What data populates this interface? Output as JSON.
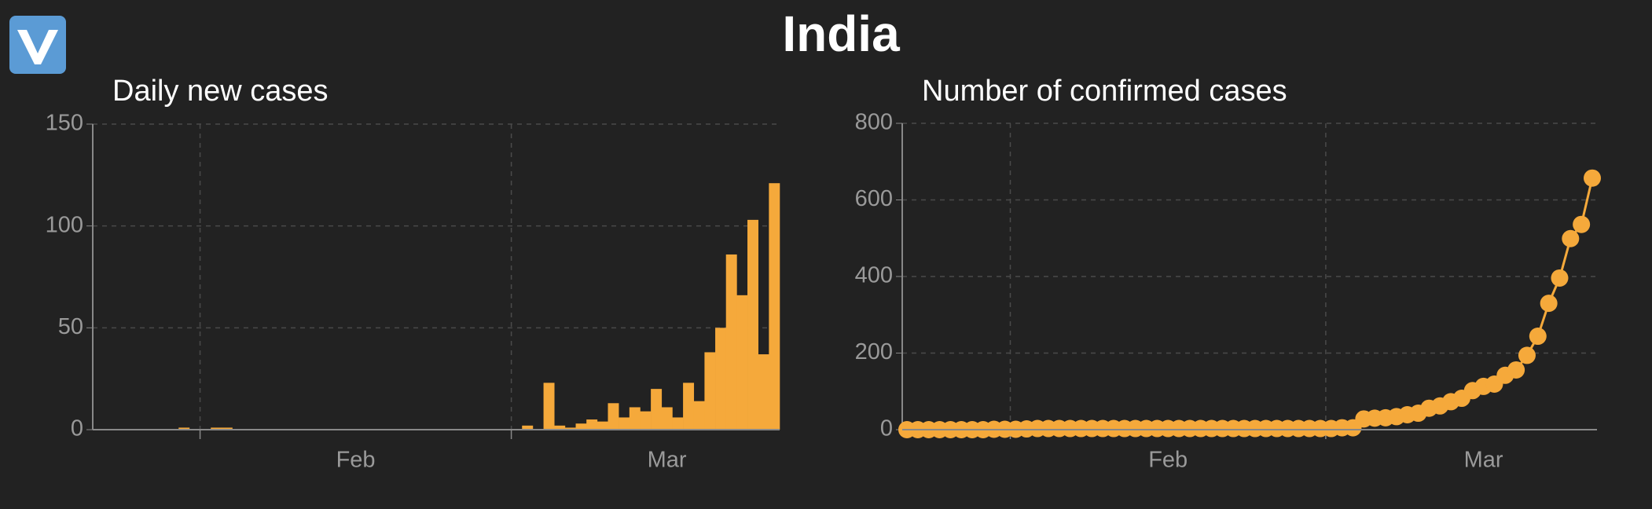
{
  "title": "India",
  "chart_data": [
    {
      "type": "bar",
      "title": "Daily new cases",
      "color": "#f5a93b",
      "grid": true,
      "categories": [
        null,
        null,
        null,
        null,
        null,
        null,
        null,
        null,
        null,
        null,
        null,
        null,
        null,
        null,
        null,
        null,
        null,
        null,
        null,
        null,
        null,
        null,
        null,
        null,
        "Feb",
        null,
        null,
        null,
        null,
        null,
        null,
        null,
        null,
        null,
        null,
        null,
        null,
        null,
        null,
        null,
        null,
        null,
        null,
        null,
        null,
        null,
        null,
        null,
        null,
        null,
        null,
        null,
        null,
        "Mar",
        null,
        null,
        null,
        null,
        null,
        null,
        null,
        null,
        null,
        null
      ],
      "values": [
        0,
        0,
        0,
        0,
        0,
        0,
        0,
        0,
        1,
        0,
        0,
        1,
        1,
        0,
        0,
        0,
        0,
        0,
        0,
        0,
        0,
        0,
        0,
        0,
        0,
        0,
        0,
        0,
        0,
        0,
        0,
        0,
        0,
        0,
        0,
        0,
        0,
        0,
        0,
        0,
        2,
        0,
        23,
        2,
        1,
        3,
        5,
        4,
        13,
        6,
        11,
        9,
        20,
        11,
        6,
        23,
        14,
        38,
        50,
        86,
        66,
        103,
        37,
        121
      ],
      "ylim": [
        0,
        150
      ],
      "yticks": [
        0,
        50,
        100,
        150
      ]
    },
    {
      "type": "line",
      "title": "Number of confirmed cases",
      "color": "#f5a93b",
      "grid": true,
      "categories": [
        null,
        null,
        null,
        null,
        null,
        null,
        null,
        null,
        null,
        null,
        null,
        null,
        null,
        null,
        null,
        null,
        null,
        null,
        null,
        null,
        null,
        null,
        null,
        null,
        "Feb",
        null,
        null,
        null,
        null,
        null,
        null,
        null,
        null,
        null,
        null,
        null,
        null,
        null,
        null,
        null,
        null,
        null,
        null,
        null,
        null,
        null,
        null,
        null,
        null,
        null,
        null,
        null,
        null,
        "Mar",
        null,
        null,
        null,
        null,
        null,
        null,
        null,
        null,
        null,
        null
      ],
      "values": [
        0,
        0,
        0,
        0,
        0,
        0,
        0,
        0,
        1,
        1,
        1,
        2,
        3,
        3,
        3,
        3,
        3,
        3,
        3,
        3,
        3,
        3,
        3,
        3,
        3,
        3,
        3,
        3,
        3,
        3,
        3,
        3,
        3,
        3,
        3,
        3,
        3,
        3,
        3,
        3,
        5,
        5,
        28,
        30,
        31,
        34,
        39,
        43,
        56,
        62,
        73,
        82,
        102,
        113,
        119,
        142,
        156,
        194,
        244,
        330,
        396,
        499,
        536,
        657
      ],
      "ylim": [
        0,
        800
      ],
      "yticks": [
        0,
        200,
        400,
        600,
        800
      ]
    }
  ]
}
